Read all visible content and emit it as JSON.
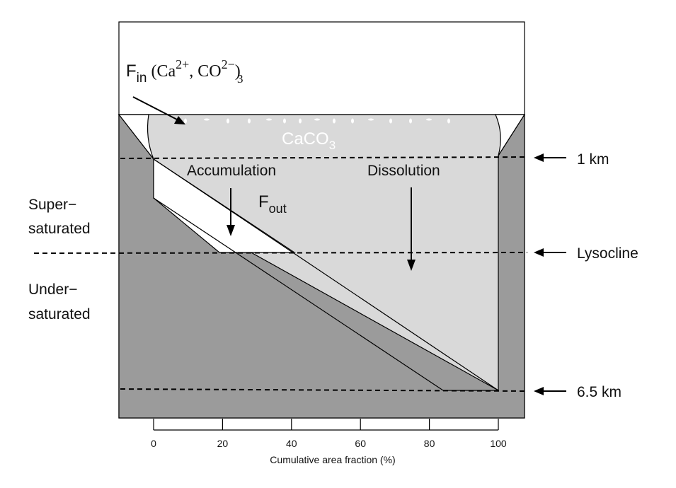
{
  "flux_in": {
    "symbol": "F",
    "subscript": "in",
    "open": " (Ca",
    "ca_charge": "2+",
    "sep": ", CO",
    "co3_sub": "3",
    "co3_charge": "2−",
    "close": ")"
  },
  "caco3": {
    "text": "CaCO",
    "sub": "3"
  },
  "labels": {
    "accumulation": "Accumulation",
    "dissolution": "Dissolution",
    "fout_symbol": "F",
    "fout_sub": "out",
    "super_1": "Super−",
    "super_2": "saturated",
    "under_1": "Under−",
    "under_2": "saturated"
  },
  "depth_markers": [
    {
      "label": "1 km"
    },
    {
      "label": "Lysocline"
    },
    {
      "label": "6.5 km"
    }
  ],
  "axis": {
    "ticks": [
      "0",
      "20",
      "40",
      "60",
      "80",
      "100"
    ],
    "xlabel": "Cumulative area fraction (%)"
  },
  "colors": {
    "sediment": "#9b9b9b",
    "water": "#d9d9d9",
    "accumulation_zone": "#ffffff",
    "rain_drops": "#ffffff",
    "outline": "#000000"
  }
}
